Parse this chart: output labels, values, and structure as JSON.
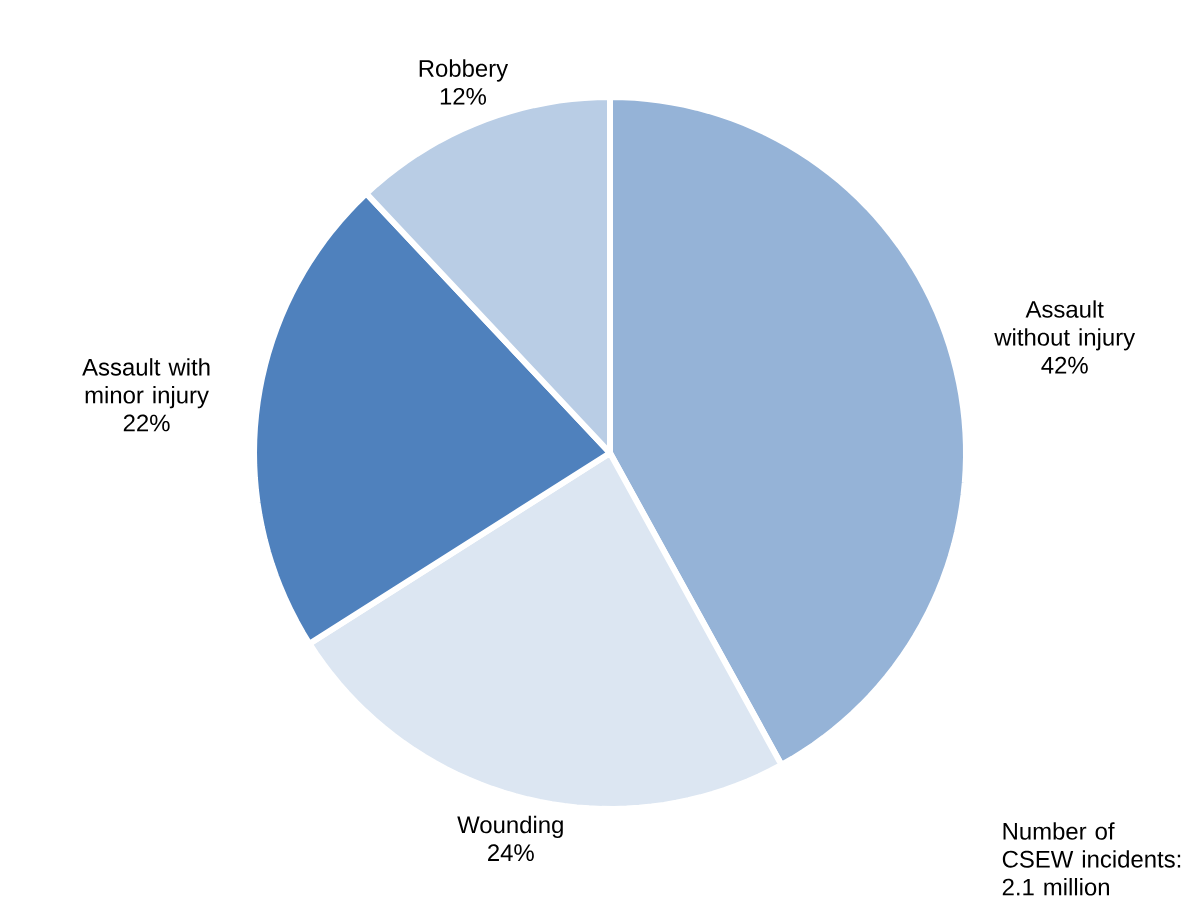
{
  "chart_data": {
    "type": "pie",
    "categories": [
      "Assault without injury",
      "Wounding",
      "Assault with minor injury",
      "Robbery"
    ],
    "values": [
      42,
      24,
      22,
      12
    ],
    "value_labels": [
      "42%",
      "24%",
      "22%",
      "12%"
    ],
    "colors": [
      "#95b3d7",
      "#dce6f2",
      "#4f81bd",
      "#b9cde5"
    ],
    "annotations": [
      "Number of CSEW incidents: 2.1 million"
    ]
  }
}
